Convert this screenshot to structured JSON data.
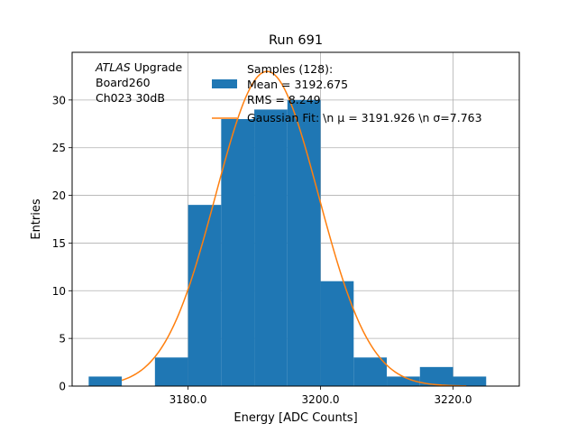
{
  "chart_data": {
    "type": "bar",
    "title": "Run 691",
    "xlabel": "Energy [ADC Counts]",
    "ylabel": "Entries",
    "xlim": [
      3162.5,
      3230.0
    ],
    "ylim": [
      0,
      35
    ],
    "xticks": [
      3180.0,
      3200.0,
      3220.0
    ],
    "xtick_labels": [
      "3180.0",
      "3200.0",
      "3220.0"
    ],
    "yticks": [
      0,
      5,
      10,
      15,
      20,
      25,
      30
    ],
    "ytick_labels": [
      "0",
      "5",
      "10",
      "15",
      "20",
      "25",
      "30"
    ],
    "grid": true,
    "bar_color": "#1f77b4",
    "fit_color": "#ff7f0e",
    "bins": [
      {
        "lo": 3165.0,
        "hi": 3170.0,
        "count": 1
      },
      {
        "lo": 3170.0,
        "hi": 3175.0,
        "count": 0
      },
      {
        "lo": 3175.0,
        "hi": 3180.0,
        "count": 3
      },
      {
        "lo": 3180.0,
        "hi": 3185.0,
        "count": 19
      },
      {
        "lo": 3185.0,
        "hi": 3190.0,
        "count": 28
      },
      {
        "lo": 3190.0,
        "hi": 3195.0,
        "count": 29
      },
      {
        "lo": 3195.0,
        "hi": 3200.0,
        "count": 30
      },
      {
        "lo": 3200.0,
        "hi": 3205.0,
        "count": 11
      },
      {
        "lo": 3205.0,
        "hi": 3210.0,
        "count": 3
      },
      {
        "lo": 3210.0,
        "hi": 3215.0,
        "count": 1
      },
      {
        "lo": 3215.0,
        "hi": 3220.0,
        "count": 2
      },
      {
        "lo": 3220.0,
        "hi": 3225.0,
        "count": 1
      }
    ],
    "fit": {
      "mu": 3191.926,
      "sigma": 7.763,
      "amplitude": 33,
      "x_range": [
        3170.0,
        3222.0
      ]
    },
    "annotation": {
      "lines": [
        {
          "italic": "ATLAS",
          "rest": " Upgrade"
        },
        {
          "italic": "",
          "rest": " Board260"
        },
        {
          "italic": "",
          "rest": " Ch023 30dB"
        }
      ]
    },
    "legend": {
      "position": "top-center",
      "entries": [
        {
          "kind": "patch",
          "lines": [
            "Samples (128):",
            " Mean = 3192.675",
            " RMS = 8.249"
          ]
        },
        {
          "kind": "line",
          "label": "Gaussian Fit: \\n μ = 3191.926 \\n σ=7.763"
        }
      ]
    }
  }
}
